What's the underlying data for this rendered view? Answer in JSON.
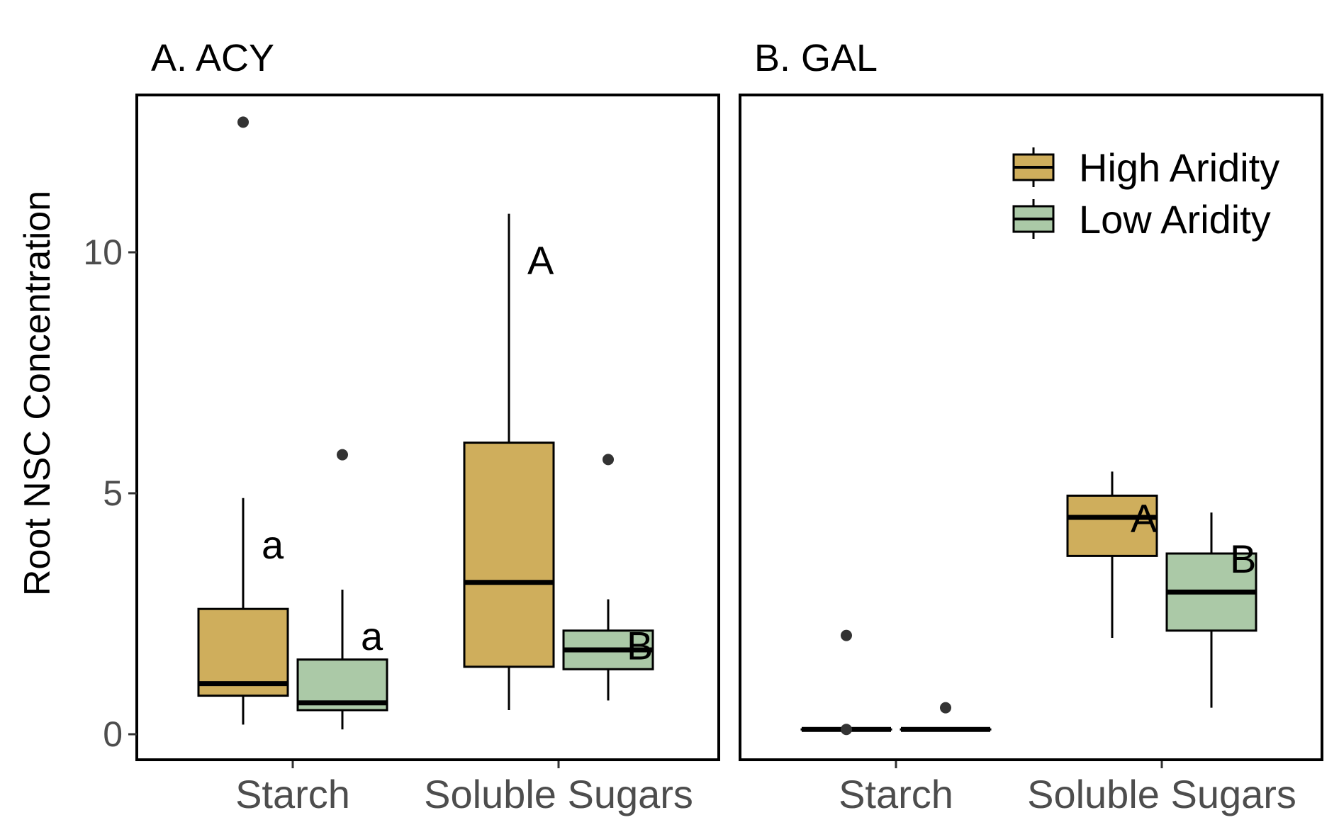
{
  "chart_data": [
    {
      "type": "box",
      "title": "A. ACY",
      "ylabel": "Root NSC Concentration",
      "ylim": [
        -0.5,
        13.3
      ],
      "yticks": [
        0,
        5,
        10
      ],
      "categories": [
        "Starch",
        "Soluble Sugars"
      ],
      "series": [
        {
          "name": "High Aridity",
          "color": "#cfae5c",
          "boxes": [
            {
              "category": "Starch",
              "whislo": 0.2,
              "q1": 0.8,
              "median": 1.05,
              "q3": 2.6,
              "whishi": 4.9,
              "outliers": [
                12.7
              ],
              "letter": "a"
            },
            {
              "category": "Soluble Sugars",
              "whislo": 0.5,
              "q1": 1.4,
              "median": 3.15,
              "q3": 6.05,
              "whishi": 10.8,
              "outliers": [],
              "letter": "A"
            }
          ]
        },
        {
          "name": "Low Aridity",
          "color": "#abc9a7",
          "boxes": [
            {
              "category": "Starch",
              "whislo": 0.1,
              "q1": 0.5,
              "median": 0.65,
              "q3": 1.55,
              "whishi": 3.0,
              "outliers": [
                5.8
              ],
              "letter": "a"
            },
            {
              "category": "Soluble Sugars",
              "whislo": 0.7,
              "q1": 1.35,
              "median": 1.75,
              "q3": 2.15,
              "whishi": 2.8,
              "outliers": [
                5.7
              ],
              "letter": "B"
            }
          ]
        }
      ]
    },
    {
      "type": "box",
      "title": "B. GAL",
      "ylim": [
        -0.5,
        13.3
      ],
      "categories": [
        "Starch",
        "Soluble Sugars"
      ],
      "series": [
        {
          "name": "High Aridity",
          "color": "#cfae5c",
          "boxes": [
            {
              "category": "Starch",
              "whislo": 0.1,
              "q1": 0.1,
              "median": 0.1,
              "q3": 0.1,
              "whishi": 0.1,
              "outliers": [
                2.05,
                0.1
              ],
              "letter": ""
            },
            {
              "category": "Soluble Sugars",
              "whislo": 2.0,
              "q1": 3.7,
              "median": 4.5,
              "q3": 4.95,
              "whishi": 5.45,
              "outliers": [],
              "letter": "A"
            }
          ]
        },
        {
          "name": "Low Aridity",
          "color": "#abc9a7",
          "boxes": [
            {
              "category": "Starch",
              "whislo": 0.1,
              "q1": 0.1,
              "median": 0.1,
              "q3": 0.1,
              "whishi": 0.1,
              "outliers": [
                0.55
              ],
              "letter": ""
            },
            {
              "category": "Soluble Sugars",
              "whislo": 0.55,
              "q1": 2.15,
              "median": 2.95,
              "q3": 3.75,
              "whishi": 4.6,
              "outliers": [],
              "letter": "B"
            }
          ]
        }
      ],
      "legend": {
        "placement": "top-right",
        "entries": [
          "High Aridity",
          "Low Aridity"
        ]
      }
    }
  ]
}
